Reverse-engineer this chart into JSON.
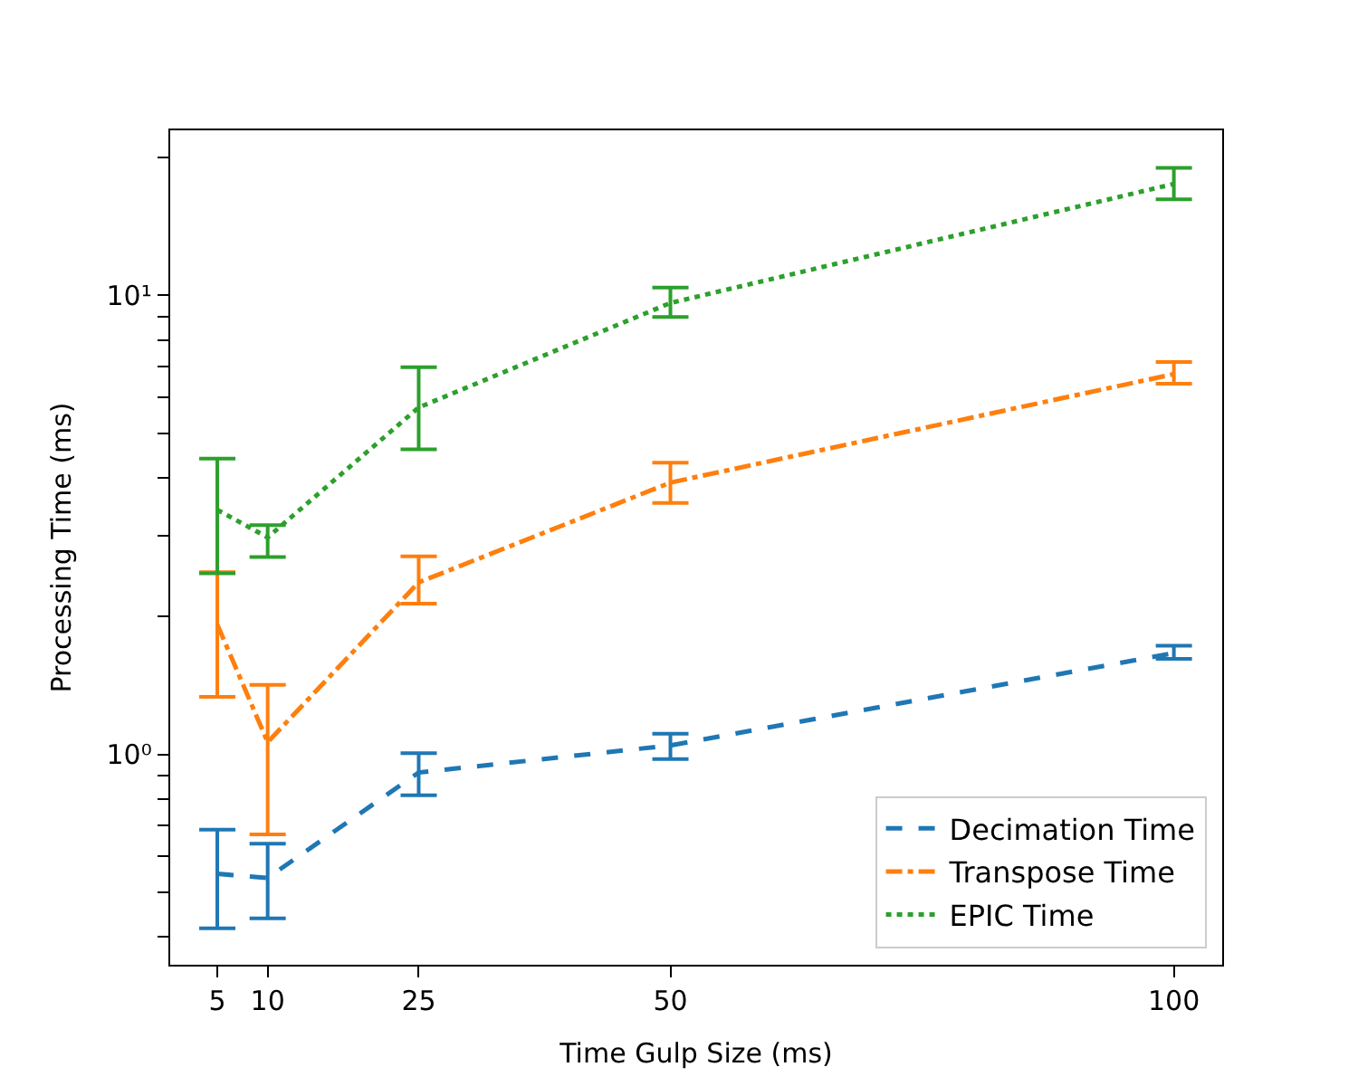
{
  "chart_data": {
    "type": "line",
    "xlabel": "Time Gulp Size (ms)",
    "ylabel": "Processing Time (ms)",
    "x": [
      5,
      10,
      25,
      50,
      100
    ],
    "series": [
      {
        "name": "Decimation Time",
        "color": "#1f77b4",
        "line_style": "dashed",
        "values": [
          0.549,
          0.538,
          0.913,
          1.046,
          1.663
        ],
        "errors": [
          [
            0.418,
            0.685
          ],
          [
            0.439,
            0.639
          ],
          [
            0.814,
            1.006
          ],
          [
            0.977,
            1.109
          ],
          [
            1.614,
            1.724
          ]
        ]
      },
      {
        "name": "Transpose Time",
        "color": "#ff7f0e",
        "line_style": "dashdot",
        "values": [
          1.918,
          1.063,
          2.37,
          3.91,
          6.74
        ],
        "errors": [
          [
            1.334,
            2.495
          ],
          [
            0.669,
            1.417
          ],
          [
            2.13,
            2.7
          ],
          [
            3.53,
            4.32
          ],
          [
            6.42,
            7.16
          ]
        ]
      },
      {
        "name": "EPIC Time",
        "color": "#2ca02c",
        "line_style": "dotted",
        "values": [
          3.41,
          2.97,
          5.7,
          9.63,
          17.5
        ],
        "errors": [
          [
            2.48,
            4.41
          ],
          [
            2.69,
            3.16
          ],
          [
            4.62,
            6.98
          ],
          [
            8.98,
            10.4
          ],
          [
            16.2,
            18.97
          ]
        ]
      }
    ],
    "xlim": [
      0.32,
      104.8
    ],
    "xticks": [
      5,
      10,
      25,
      50,
      100
    ],
    "ylim": [
      0.348,
      22.9
    ],
    "yticks": [
      {
        "value": 0.4,
        "label": null
      },
      {
        "value": 0.5,
        "label": null
      },
      {
        "value": 0.6,
        "label": null
      },
      {
        "value": 0.7,
        "label": null
      },
      {
        "value": 0.8,
        "label": null
      },
      {
        "value": 0.9,
        "label": null
      },
      {
        "value": 1,
        "label": "10⁰"
      },
      {
        "value": 2,
        "label": null
      },
      {
        "value": 3,
        "label": null
      },
      {
        "value": 4,
        "label": null
      },
      {
        "value": 5,
        "label": null
      },
      {
        "value": 6,
        "label": null
      },
      {
        "value": 7,
        "label": null
      },
      {
        "value": 8,
        "label": null
      },
      {
        "value": 9,
        "label": null
      },
      {
        "value": 10,
        "label": "10¹"
      },
      {
        "value": 20,
        "label": null
      }
    ],
    "log": "y",
    "legend": "bottom right",
    "marker": "none"
  }
}
